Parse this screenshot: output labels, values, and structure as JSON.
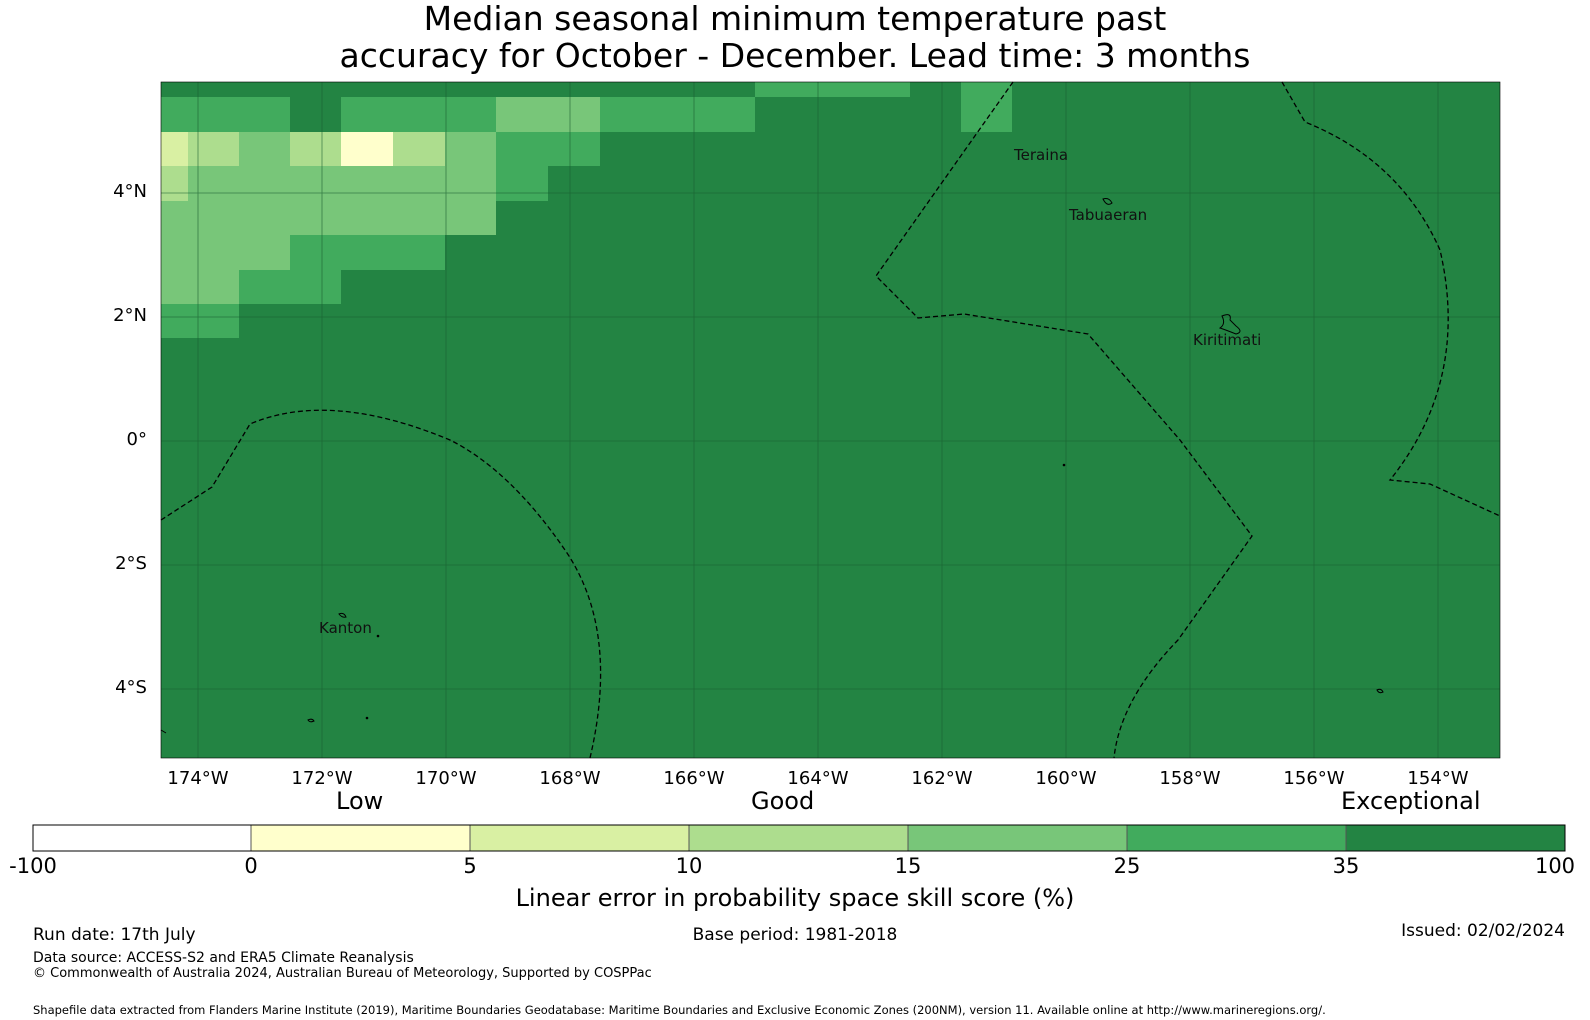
{
  "title": {
    "line1": "Median seasonal minimum temperature past",
    "line2": "accuracy for October - December. Lead time: 3 months"
  },
  "map": {
    "lat_labels": [
      "4°N",
      "2°N",
      "0°",
      "2°S",
      "4°S"
    ],
    "lon_labels": [
      "174°W",
      "172°W",
      "170°W",
      "168°W",
      "166°W",
      "164°W",
      "162°W",
      "160°W",
      "158°W",
      "156°W",
      "154°W"
    ],
    "places": [
      "Teraina",
      "Tabuaeran",
      "Kiritimati",
      "Kanton"
    ],
    "background_color": "#238443",
    "boundary_style": "dashed"
  },
  "colorbar": {
    "categories": [
      "Low",
      "Good",
      "Exceptional"
    ],
    "ticks": [
      "-100",
      "0",
      "5",
      "10",
      "15",
      "25",
      "35",
      "100"
    ],
    "colors": [
      "#ffffff",
      "#ffffcc",
      "#d9f0a3",
      "#addd8e",
      "#78c679",
      "#41ab5d",
      "#238443"
    ],
    "label": "Linear error in probability space skill score (%)"
  },
  "footer": {
    "run_date": "Run date: 17th July",
    "base_period": "Base period: 1981-2018",
    "issued": "Issued: 02/02/2024",
    "data_source": "Data source: ACCESS-S2 and ERA5 Climate Reanalysis",
    "copyright": "© Commonwealth of Australia 2024, Australian Bureau of Meteorology, Supported by COSPPac",
    "shapefile": "Shapefile data extracted from Flanders Marine Institute (2019), Maritime Boundaries Geodatabase: Maritime Boundaries and Exclusive Economic Zones (200NM), version 11. Available online at http://www.marineregions.org/."
  }
}
